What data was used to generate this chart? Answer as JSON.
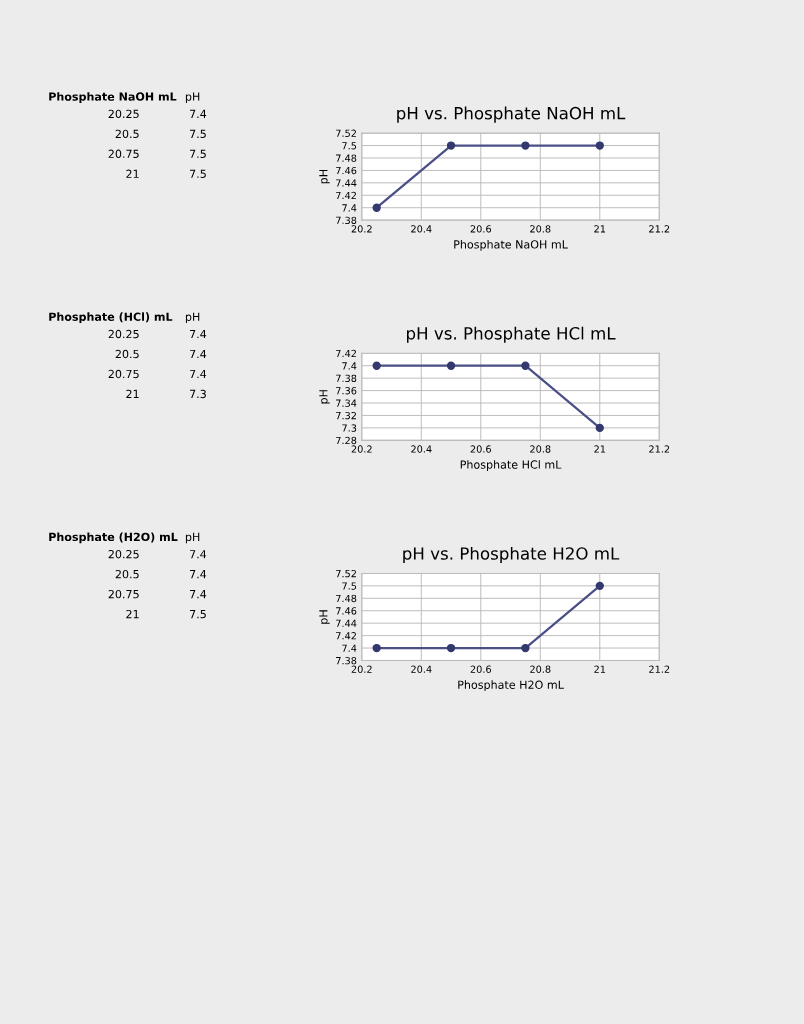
{
  "chart_data": [
    {
      "type": "other",
      "annotations": [
        "Phosphate NaOH mL",
        "pH",
        "20.25 7.4",
        "20.5 7.5",
        "20.75 7.5",
        "21 7.5"
      ]
    },
    {
      "type": "line",
      "title": "pH vs. Phosphate NaOH mL",
      "xlabel": "Phosphate NaOH mL",
      "ylabel": "pH",
      "x": [
        20.25,
        20.5,
        20.75,
        21
      ],
      "series": [
        {
          "color": "#4a4f86",
          "values": [
            7.4,
            7.5,
            7.5,
            7.5
          ]
        }
      ],
      "xlim": [
        20.2,
        21.2
      ],
      "xticks": [
        20.2,
        20.4,
        20.6,
        20.8,
        21,
        21.2
      ],
      "ylim": [
        7.38,
        7.52
      ],
      "yticks": [
        7.38,
        7.4,
        7.42,
        7.44,
        7.46,
        7.48,
        7.5,
        7.52
      ],
      "grid": true,
      "marker": "circle"
    },
    {
      "type": "other",
      "annotations": [
        "Phosphate (HCl) mL",
        "pH",
        "20.25 7.4",
        "20.5 7.4",
        "20.75 7.4",
        "21 7.3"
      ]
    },
    {
      "type": "line",
      "title": "pH vs. Phosphate HCl mL",
      "xlabel": "Phosphate HCl mL",
      "ylabel": "pH",
      "x": [
        20.25,
        20.5,
        20.75,
        21
      ],
      "series": [
        {
          "color": "#4a4f86",
          "values": [
            7.4,
            7.4,
            7.4,
            7.3
          ]
        }
      ],
      "xlim": [
        20.2,
        21.2
      ],
      "xticks": [
        20.2,
        20.4,
        20.6,
        20.8,
        21,
        21.2
      ],
      "ylim": [
        7.28,
        7.42
      ],
      "yticks": [
        7.28,
        7.3,
        7.32,
        7.34,
        7.36,
        7.38,
        7.4,
        7.42
      ],
      "grid": true,
      "marker": "circle"
    },
    {
      "type": "other",
      "annotations": [
        "Phosphate (H2O) mL",
        "pH",
        "20.25 7.4",
        "20.5 7.4",
        "20.75 7.4",
        "21 7.5"
      ]
    },
    {
      "type": "line",
      "title": "pH vs. Phosphate H2O mL",
      "xlabel": "Phosphate H2O mL",
      "ylabel": "pH",
      "x": [
        20.25,
        20.5,
        20.75,
        21
      ],
      "series": [
        {
          "color": "#4a4f86",
          "values": [
            7.4,
            7.4,
            7.4,
            7.5
          ]
        }
      ],
      "xlim": [
        20.2,
        21.2
      ],
      "xticks": [
        20.2,
        20.4,
        20.6,
        20.8,
        21,
        21.2
      ],
      "ylim": [
        7.38,
        7.52
      ],
      "yticks": [
        7.38,
        7.4,
        7.42,
        7.44,
        7.46,
        7.48,
        7.5,
        7.52
      ],
      "grid": true,
      "marker": "circle"
    }
  ]
}
